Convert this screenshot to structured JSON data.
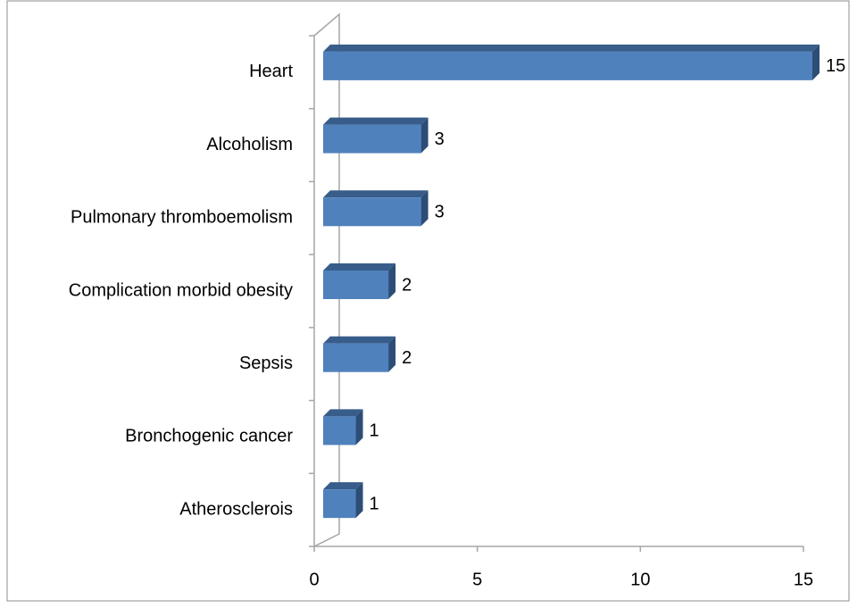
{
  "chart_data": {
    "type": "bar",
    "orientation": "horizontal",
    "categories": [
      "Heart",
      "Alcoholism",
      "Pulmonary thromboemolism",
      "Complication morbid obesity",
      "Sepsis",
      "Bronchogenic cancer",
      "Atherosclerois"
    ],
    "values": [
      15,
      3,
      3,
      2,
      2,
      1,
      1
    ],
    "color": "#4f81bd",
    "xlim": [
      0,
      15
    ],
    "xticks": [
      0,
      5,
      10,
      15
    ],
    "grid": false
  }
}
